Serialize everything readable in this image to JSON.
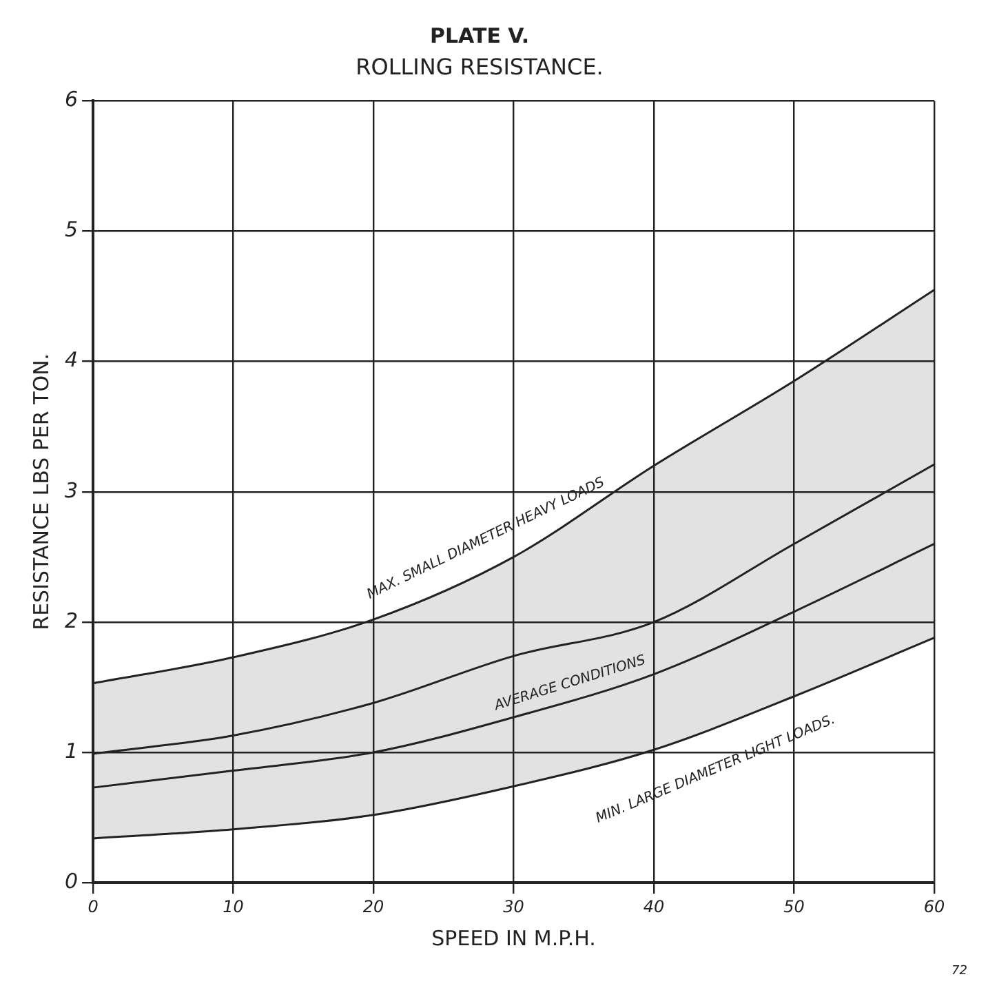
{
  "chart_data": {
    "type": "line",
    "title": "PLATE V.",
    "subtitle": "ROLLING RESISTANCE.",
    "xlabel": "SPEED IN M.P.H.",
    "ylabel": "RESISTANCE LBS PER TON.",
    "x": [
      0,
      10,
      20,
      30,
      40,
      50,
      60
    ],
    "series": [
      {
        "color": "#222222",
        "values": [
          1.53,
          1.73,
          2.02,
          2.5,
          3.2,
          3.85,
          4.55
        ],
        "lower": [
          0.34,
          0.41,
          0.52,
          0.74,
          1.02,
          1.43,
          1.88
        ],
        "upper": [
          1.53,
          1.73,
          2.02,
          2.5,
          3.2,
          3.85,
          4.55
        ]
      },
      {
        "color": "#222222",
        "values": [
          0.99,
          1.13,
          1.38,
          1.74,
          2.0,
          2.6,
          3.21
        ]
      },
      {
        "color": "#222222",
        "values": [
          0.73,
          0.86,
          1.0,
          1.27,
          1.6,
          2.08,
          2.6
        ]
      },
      {
        "color": "#222222",
        "values": [
          0.34,
          0.41,
          0.52,
          0.74,
          1.02,
          1.43,
          1.88
        ]
      }
    ],
    "annotations": [
      "MAX. SMALL DIAMETER HEAVY LOADS",
      "AVERAGE CONDITIONS",
      "MIN. LARGE DIAMETER LIGHT LOADS.",
      "72"
    ],
    "xlim": [
      0,
      60
    ],
    "xticks": [
      0,
      10,
      20,
      30,
      40,
      50,
      60
    ],
    "ylim": [
      0,
      6
    ],
    "yticks": [
      0,
      1,
      2,
      3,
      4,
      5,
      6
    ],
    "grid": true,
    "legend": false,
    "marker": "none",
    "line_style": "solid"
  }
}
